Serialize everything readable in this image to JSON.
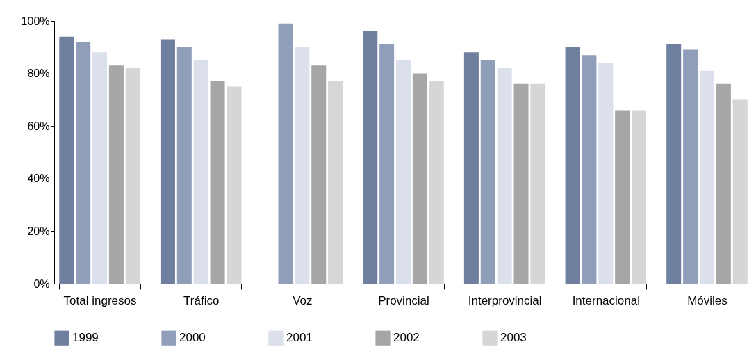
{
  "chart_data": {
    "type": "bar",
    "categories": [
      "Total ingresos",
      "Tráfico",
      "Voz",
      "Provincial",
      "Interprovincial",
      "Internacional",
      "Móviles"
    ],
    "series": [
      {
        "name": "1999",
        "color": "#6e7fa0",
        "values": [
          94,
          93,
          null,
          96,
          88,
          90,
          91
        ]
      },
      {
        "name": "2000",
        "color": "#919eba",
        "values": [
          92,
          90,
          99,
          91,
          85,
          87,
          89
        ]
      },
      {
        "name": "2001",
        "color": "#dcdfec",
        "values": [
          88,
          85,
          90,
          85,
          82,
          84,
          81
        ]
      },
      {
        "name": "2002",
        "color": "#a6a6a6",
        "values": [
          83,
          77,
          83,
          80,
          76,
          66,
          76
        ]
      },
      {
        "name": "2003",
        "color": "#d6d6d6",
        "values": [
          82,
          75,
          77,
          77,
          76,
          66,
          70
        ]
      }
    ],
    "ylim": [
      0,
      100
    ],
    "yticks": [
      {
        "value": 0,
        "label": "0%"
      },
      {
        "value": 20,
        "label": "20%"
      },
      {
        "value": 40,
        "label": "40%"
      },
      {
        "value": 60,
        "label": "60%"
      },
      {
        "value": 80,
        "label": "80%"
      },
      {
        "value": 100,
        "label": "100%"
      }
    ],
    "grid": false,
    "legend": "bottom"
  }
}
